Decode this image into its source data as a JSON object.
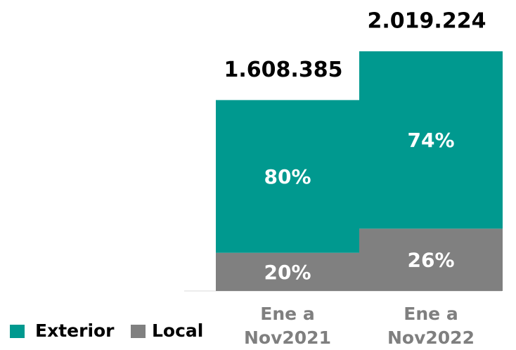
{
  "chart_data": {
    "type": "bar",
    "categories": [
      "Ene a\nNov2021",
      "Ene a\nNov2022"
    ],
    "totals": [
      1608385,
      2019224
    ],
    "total_labels": [
      "1.608.385",
      "2.019.224"
    ],
    "series": [
      {
        "name": "Local",
        "color": "#808080",
        "values": [
          20,
          26
        ],
        "value_labels": [
          "20%",
          "26%"
        ]
      },
      {
        "name": "Exterior",
        "color": "#00998f",
        "values": [
          80,
          74
        ],
        "value_labels": [
          "80%",
          "74%"
        ]
      }
    ],
    "legend_order": [
      "Exterior",
      "Local"
    ]
  }
}
